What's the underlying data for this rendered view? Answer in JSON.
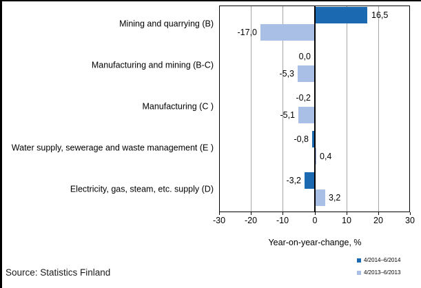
{
  "source_note": "Source: Statistics Finland",
  "chart_data": {
    "type": "bar",
    "orientation": "horizontal",
    "xlabel": "Year-on-year-change, %",
    "xlim": [
      -30,
      30
    ],
    "xticks": [
      -30,
      -20,
      -10,
      0,
      10,
      20,
      30
    ],
    "xtick_labels": [
      "-30",
      "-20",
      "-10",
      "0",
      "10",
      "20",
      "30"
    ],
    "grid": true,
    "legend_position": "bottom-right",
    "categories": [
      "Mining and quarrying (B)",
      "Manufacturing and mining (B-C)",
      "Manufacturing (C )",
      "Water supply, sewerage and waste management (E )",
      "Electricity, gas, steam, etc. supply  (D)"
    ],
    "series": [
      {
        "name": "4/2014–6/2014",
        "color": "#1b6ab1",
        "values": [
          16.5,
          0.0,
          -0.2,
          -0.8,
          -3.2
        ],
        "value_labels": [
          "16,5",
          "0,0",
          "-0,2",
          "-0,8",
          "-3,2"
        ]
      },
      {
        "name": "4/2013–6/2013",
        "color": "#aabfe6",
        "values": [
          -17.0,
          -5.3,
          -5.1,
          0.4,
          3.2
        ],
        "value_labels": [
          "-17,0",
          "-5,3",
          "-5,1",
          "0,4",
          "3,2"
        ]
      }
    ]
  }
}
